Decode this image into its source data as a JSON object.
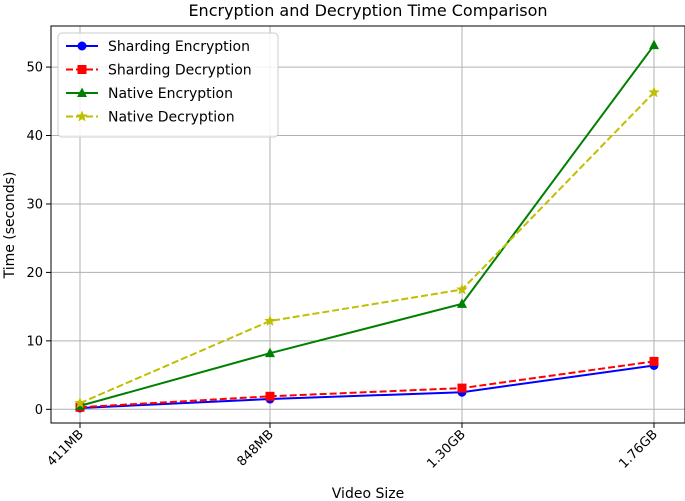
{
  "chart_data": {
    "type": "line",
    "title": "Encryption and Decryption Time Comparison",
    "xlabel": "Video Size",
    "ylabel": "Time (seconds)",
    "categories": [
      "411MB",
      "848MB",
      "1.30GB",
      "1.76GB"
    ],
    "ylim": [
      -2,
      56
    ],
    "yticks": [
      0,
      10,
      20,
      30,
      40,
      50
    ],
    "grid": true,
    "legend_position": "top-left",
    "series": [
      {
        "name": "Sharding Encryption",
        "values": [
          0.2,
          1.5,
          2.5,
          6.4
        ],
        "color": "#0000ff",
        "marker": "circle",
        "linestyle": "solid"
      },
      {
        "name": "Sharding Decryption",
        "values": [
          0.3,
          1.9,
          3.1,
          7.0
        ],
        "color": "#ff0000",
        "marker": "square",
        "linestyle": "dashed"
      },
      {
        "name": "Native Encryption",
        "values": [
          0.5,
          8.2,
          15.4,
          53.2
        ],
        "color": "#008000",
        "marker": "triangle",
        "linestyle": "solid"
      },
      {
        "name": "Native Decryption",
        "values": [
          0.9,
          12.9,
          17.5,
          46.3
        ],
        "color": "#bfbf00",
        "marker": "star",
        "linestyle": "dashed"
      }
    ]
  }
}
